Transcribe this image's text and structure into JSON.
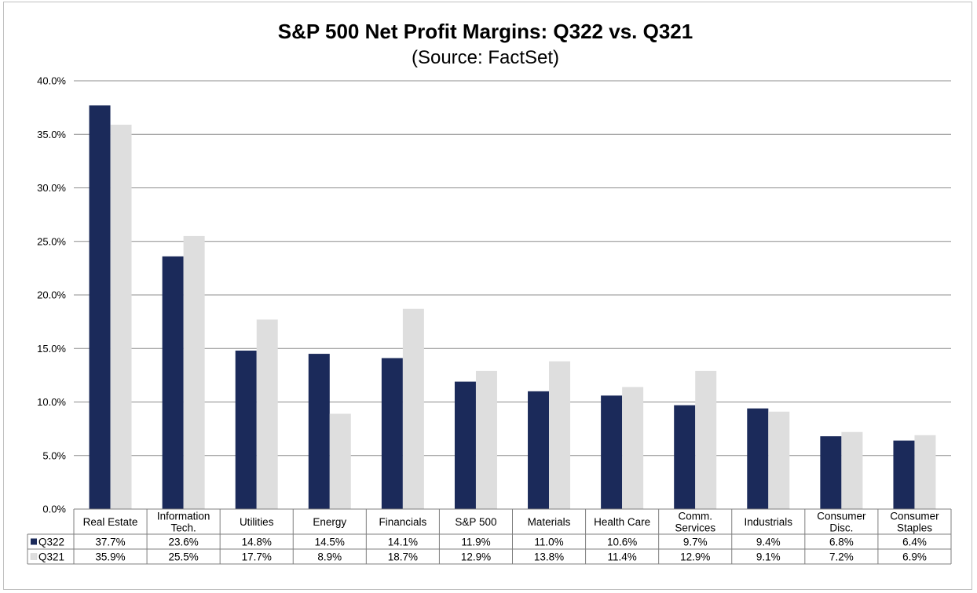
{
  "chart_data": {
    "type": "bar",
    "title": "S&P 500 Net Profit Margins: Q322 vs. Q321",
    "subtitle": "(Source: FactSet)",
    "categories": [
      [
        "Real Estate"
      ],
      [
        "Information",
        "Tech."
      ],
      [
        "Utilities"
      ],
      [
        "Energy"
      ],
      [
        "Financials"
      ],
      [
        "S&P 500"
      ],
      [
        "Materials"
      ],
      [
        "Health Care"
      ],
      [
        "Comm.",
        "Services"
      ],
      [
        "Industrials"
      ],
      [
        "Consumer",
        "Disc."
      ],
      [
        "Consumer",
        "Staples"
      ]
    ],
    "series": [
      {
        "name": "Q322",
        "color": "#1b2a5a",
        "values": [
          37.7,
          23.6,
          14.8,
          14.5,
          14.1,
          11.9,
          11.0,
          10.6,
          9.7,
          9.4,
          6.8,
          6.4
        ],
        "labels": [
          "37.7%",
          "23.6%",
          "14.8%",
          "14.5%",
          "14.1%",
          "11.9%",
          "11.0%",
          "10.6%",
          "9.7%",
          "9.4%",
          "6.8%",
          "6.4%"
        ]
      },
      {
        "name": "Q321",
        "color": "#dedede",
        "values": [
          35.9,
          25.5,
          17.7,
          8.9,
          18.7,
          12.9,
          13.8,
          11.4,
          12.9,
          9.1,
          7.2,
          6.9
        ],
        "labels": [
          "35.9%",
          "25.5%",
          "17.7%",
          "8.9%",
          "18.7%",
          "12.9%",
          "13.8%",
          "11.4%",
          "12.9%",
          "9.1%",
          "7.2%",
          "6.9%"
        ]
      }
    ],
    "ylim": [
      0,
      40
    ],
    "yticks": [
      "0.0%",
      "5.0%",
      "10.0%",
      "15.0%",
      "20.0%",
      "25.0%",
      "30.0%",
      "35.0%",
      "40.0%"
    ],
    "grid": true,
    "legend": "data-table-left",
    "xlabel": "",
    "ylabel": ""
  }
}
